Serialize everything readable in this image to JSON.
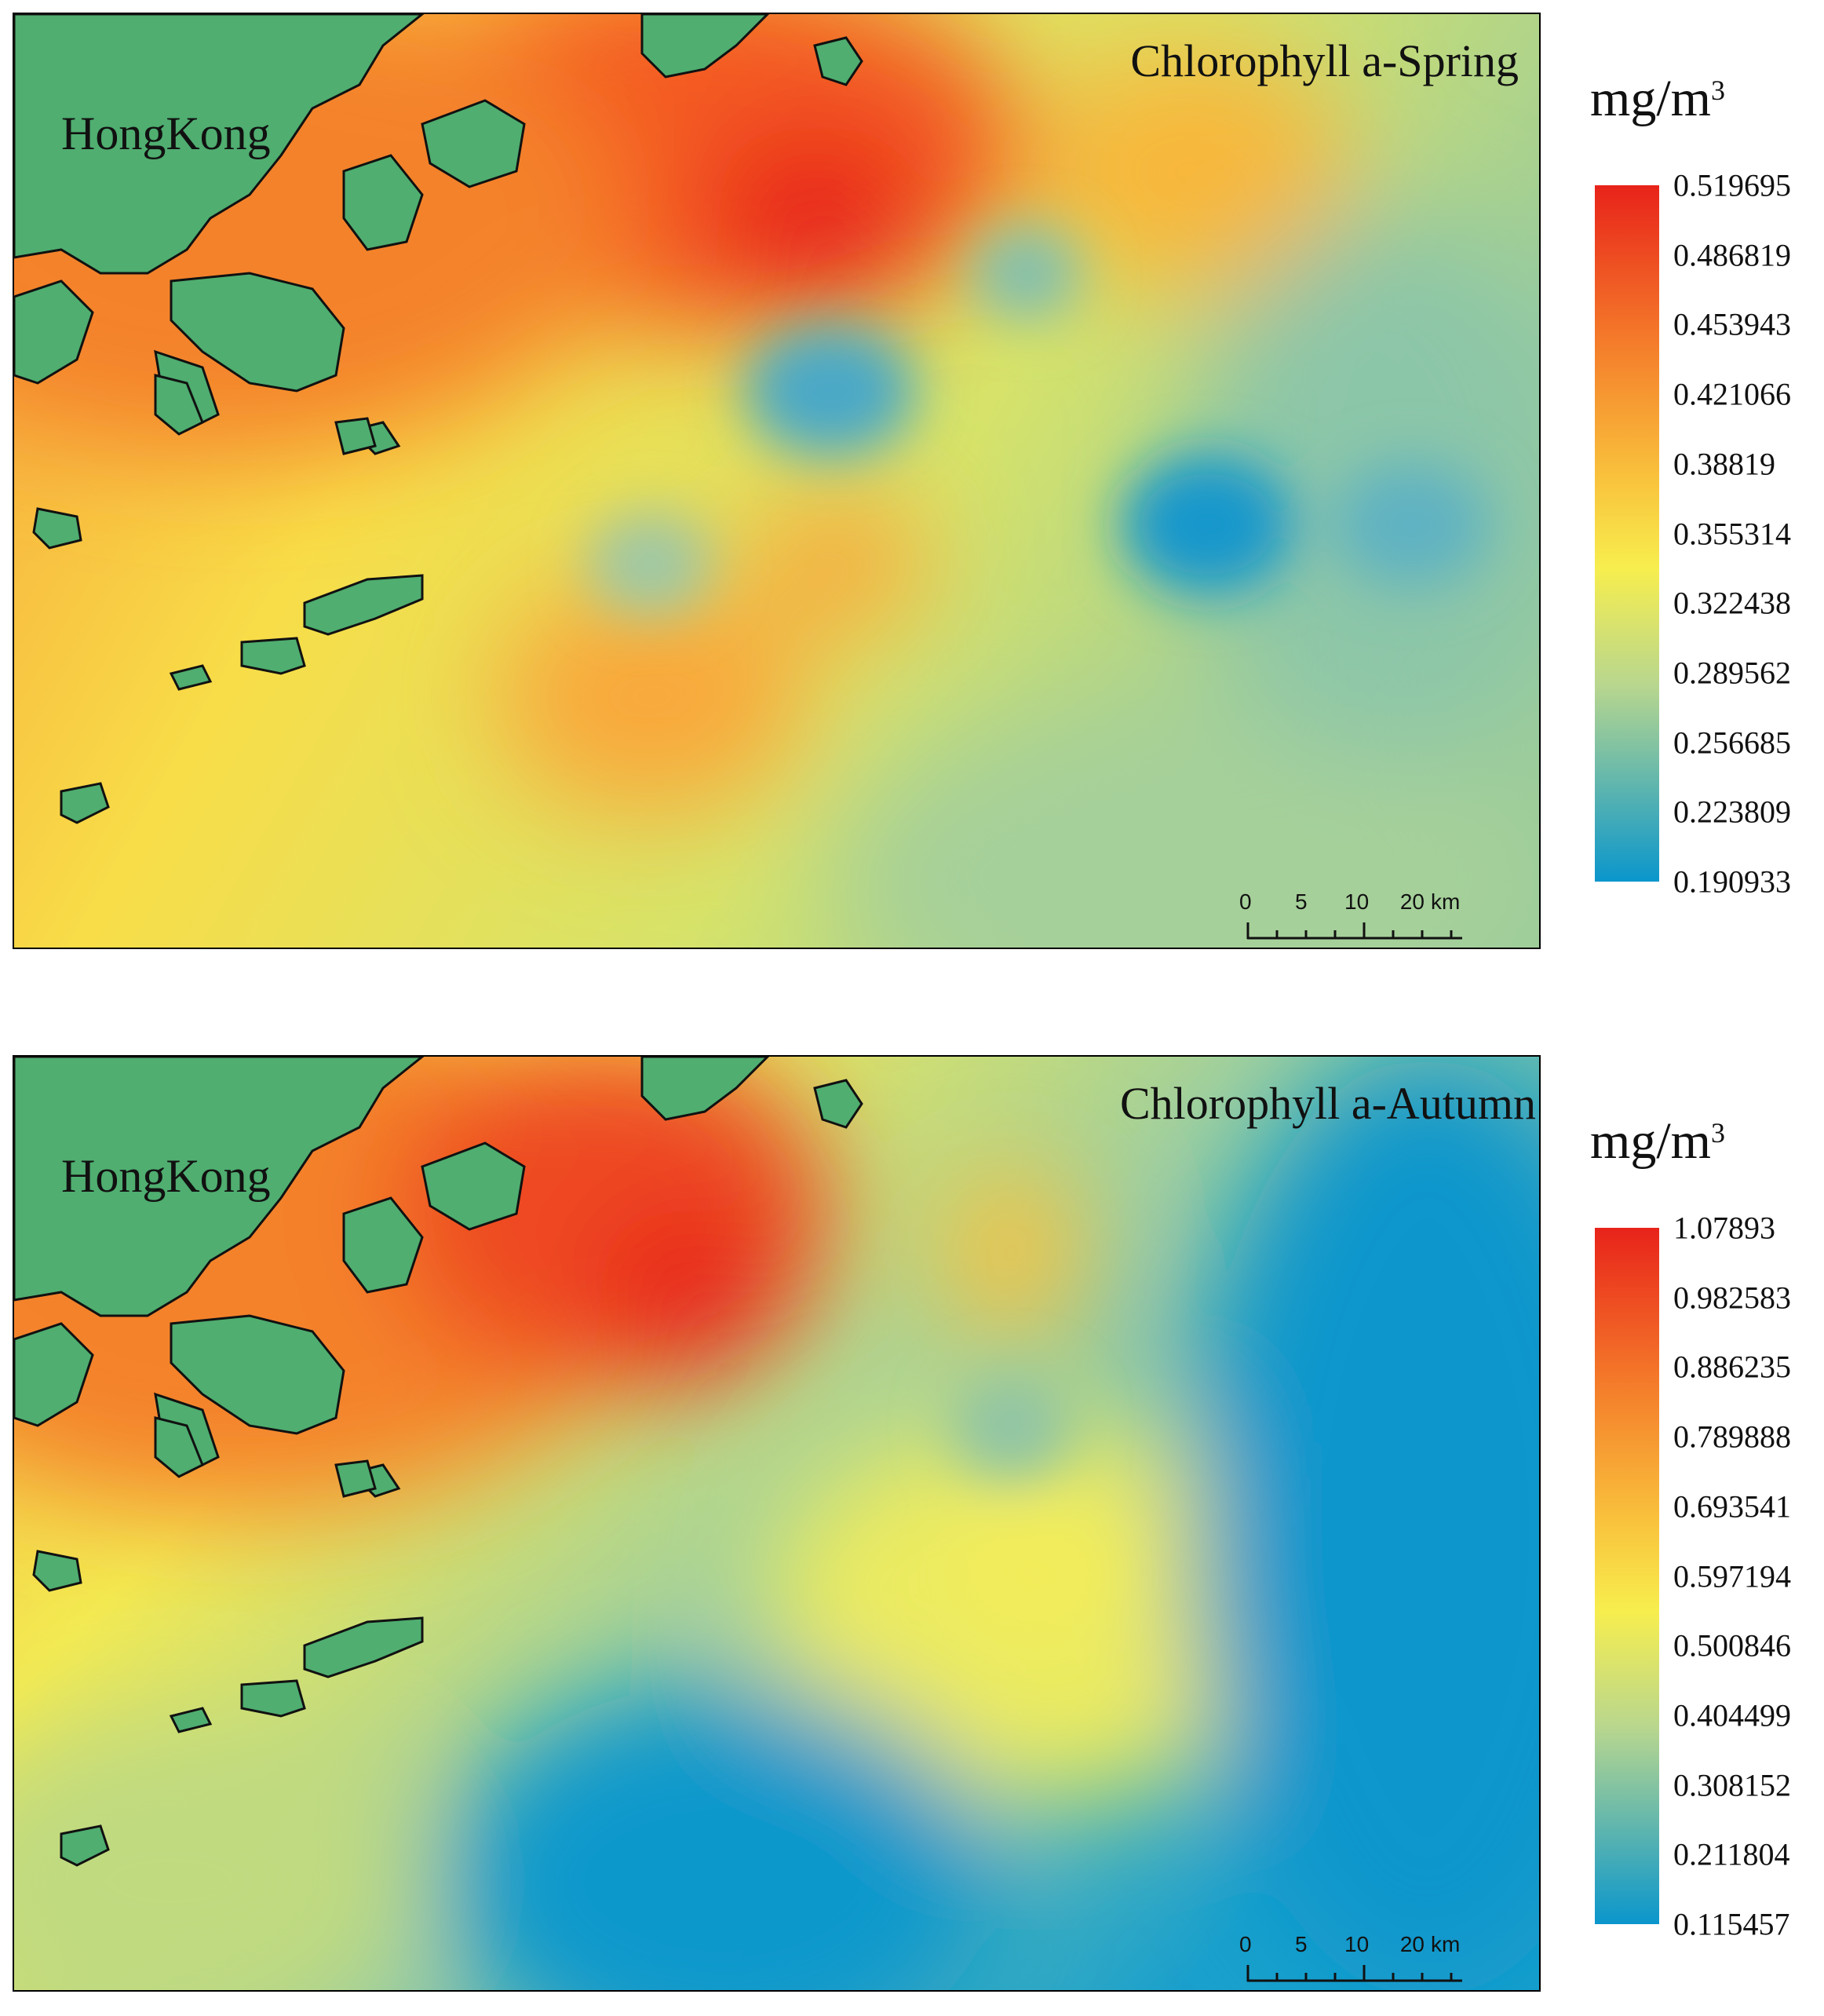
{
  "panels": [
    {
      "id": "spring",
      "title": "Chlorophyll a-Spring",
      "region_label": "HongKong",
      "unit": "mg/m",
      "unit_superscript": "3",
      "legend_values": [
        "0.519695",
        "0.486819",
        "0.453943",
        "0.421066",
        "0.38819",
        "0.355314",
        "0.322438",
        "0.289562",
        "0.256685",
        "0.223809",
        "0.190933"
      ],
      "scale_labels": [
        "0",
        "5",
        "10",
        "20",
        "km"
      ]
    },
    {
      "id": "autumn",
      "title": "Chlorophyll a-Autumn",
      "region_label": "HongKong",
      "unit": "mg/m",
      "unit_superscript": "3",
      "legend_values": [
        "1.07893",
        "0.982583",
        "0.886235",
        "0.789888",
        "0.693541",
        "0.597194",
        "0.500846",
        "0.404499",
        "0.308152",
        "0.211804",
        "0.115457"
      ],
      "scale_labels": [
        "0",
        "5",
        "10",
        "20",
        "km"
      ]
    }
  ],
  "colors": {
    "land": "#4fae70",
    "land_outline": "#111111",
    "high": "#e8231a",
    "upper": "#f47a2a",
    "mid_high": "#f9b632",
    "mid": "#f7ee4e",
    "mid_low": "#b7d68f",
    "low": "#0a96cc"
  }
}
